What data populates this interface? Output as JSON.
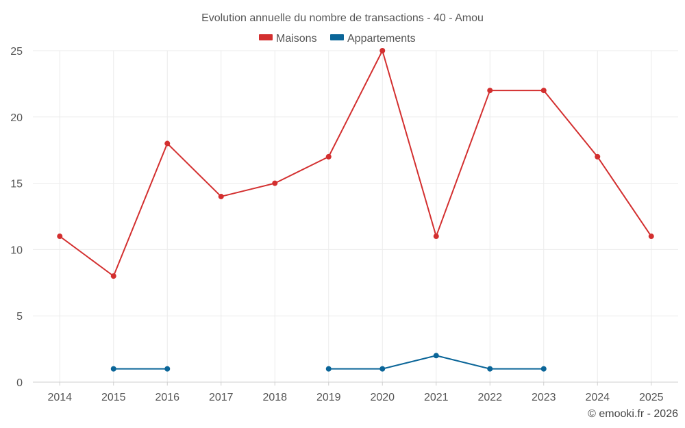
{
  "chart_data": {
    "type": "line",
    "title": "Evolution annuelle du nombre de transactions - 40 - Amou",
    "categories": [
      "2014",
      "2015",
      "2016",
      "2017",
      "2018",
      "2019",
      "2020",
      "2021",
      "2022",
      "2023",
      "2024",
      "2025"
    ],
    "ylim": [
      0,
      25
    ],
    "yticks": [
      0,
      5,
      10,
      15,
      20,
      25
    ],
    "grid": true,
    "legend_position": "top-center",
    "series": [
      {
        "name": "Maisons",
        "color": "#d32f2f",
        "values": [
          11,
          8,
          18,
          14,
          15,
          17,
          25,
          11,
          22,
          22,
          17,
          11
        ]
      },
      {
        "name": "Appartements",
        "color": "#0a6598",
        "values": [
          null,
          1,
          1,
          null,
          null,
          1,
          1,
          2,
          1,
          1,
          null,
          null
        ]
      }
    ]
  },
  "footer": {
    "credit": "© emooki.fr - 2026"
  }
}
